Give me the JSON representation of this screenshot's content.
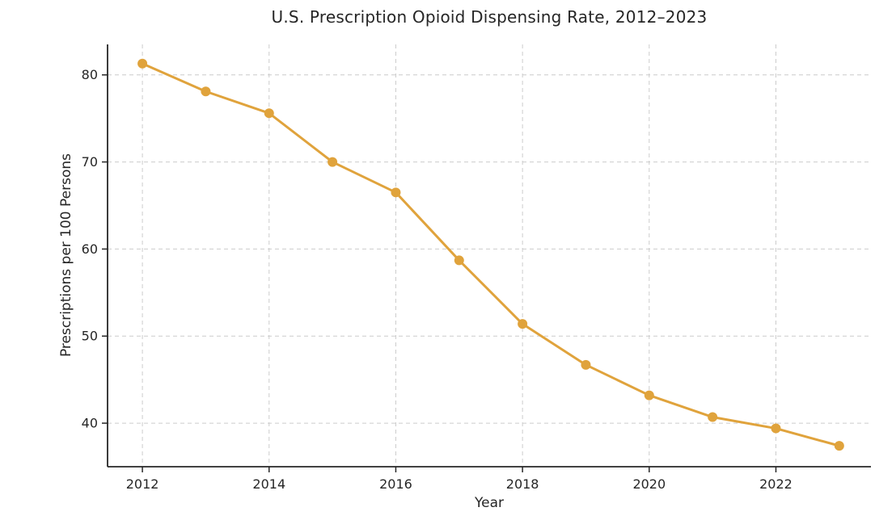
{
  "chart_data": {
    "type": "line",
    "title": "U.S. Prescription Opioid Dispensing Rate, 2012–2023",
    "xlabel": "Year",
    "ylabel": "Prescriptions per 100 Persons",
    "x": [
      2012,
      2013,
      2014,
      2015,
      2016,
      2017,
      2018,
      2019,
      2020,
      2021,
      2022,
      2023
    ],
    "series": [
      {
        "name": "Prescriptions per 100 persons",
        "values": [
          81.3,
          78.1,
          75.6,
          70.0,
          66.5,
          58.7,
          51.4,
          46.7,
          43.2,
          40.7,
          39.4,
          37.4
        ]
      }
    ],
    "xticks": [
      2012,
      2014,
      2016,
      2018,
      2020,
      2022
    ],
    "yticks": [
      40,
      50,
      60,
      70,
      80
    ],
    "xlim": [
      2011.45,
      2023.5
    ],
    "ylim": [
      35.0,
      83.5
    ],
    "grid": true,
    "grid_style": "dashed",
    "legend": "none",
    "colors": {
      "line": "#E0A33C",
      "marker": "#E0A33C",
      "grid": "#cccccc",
      "axis": "#262626",
      "text": "#262626",
      "background": "#ffffff"
    }
  }
}
